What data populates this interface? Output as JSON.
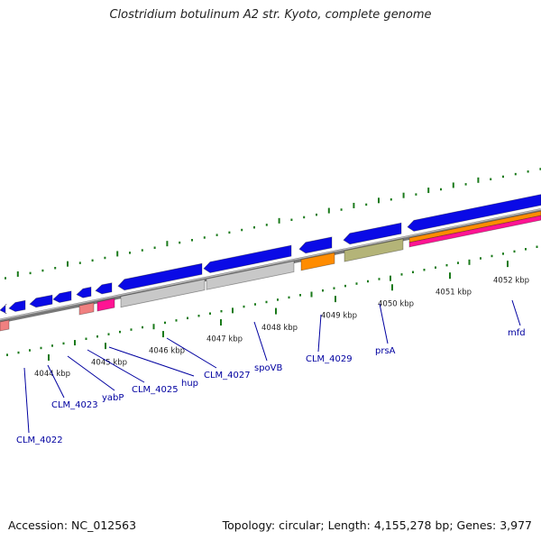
{
  "title": "Clostridium botulinum A2 str. Kyoto, complete genome",
  "footer": {
    "accession": "Accession: NC_012563",
    "topology": "Topology: circular; Length: 4,155,278 bp; Genes: 3,977"
  },
  "colors": {
    "cds": "#0a0ae6",
    "cds_edge": "#000080",
    "backbone": "#8c8c8c",
    "grey_feature": "#c8c8c8",
    "orange_feature": "#ff8c00",
    "olive_feature": "#b4b478",
    "pink_feature": "#f08080",
    "magenta_feature": "#ff1493",
    "gc_tick": "#1a7a1a",
    "label": "#0000a0"
  },
  "kbp_labels": [
    "4044 kbp",
    "4045 kbp",
    "4046 kbp",
    "4047 kbp",
    "4048 kbp",
    "4049 kbp",
    "4050 kbp",
    "4051 kbp",
    "4052 kbp"
  ],
  "gene_labels": [
    "CLM_4022",
    "CLM_4023",
    "yabP",
    "CLM_4025",
    "hup",
    "CLM_4027",
    "spoVB",
    "CLM_4029",
    "prsA",
    "mfd"
  ]
}
